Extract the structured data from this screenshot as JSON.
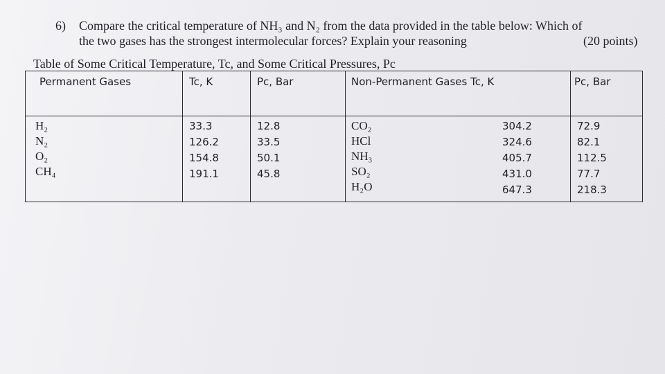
{
  "question": {
    "number": "6)",
    "line1": "Compare the critical temperature of NH₃ and N₂ from the data provided in the table below: Which of",
    "line2": "the two gases has the strongest intermolecular forces? Explain your reasoning",
    "points": "(20 points)"
  },
  "table": {
    "caption": "Table of Some Critical Temperature, Tc, and Some Critical Pressures, Pc",
    "headers": {
      "permanent": "Permanent Gases",
      "tc": "Tc, K",
      "pc": "Pc, Bar",
      "non_permanent": "Non-Permanent Gases  Tc, K",
      "pc2": "Pc, Bar"
    },
    "permanent_gases": [
      "H₂",
      "N₂",
      "O₂",
      "CH₄"
    ],
    "permanent_tc": [
      "33.3",
      "126.2",
      "154.8",
      "191.1"
    ],
    "permanent_pc": [
      "12.8",
      "33.5",
      "50.1",
      "45.8"
    ],
    "non_permanent_gases": [
      "CO₂",
      "HCl",
      "NH₃",
      "SO₂",
      "H₂O"
    ],
    "non_permanent_tc": [
      "304.2",
      "324.6",
      "405.7",
      "431.0",
      "647.3"
    ],
    "non_permanent_pc": [
      "72.9",
      "82.1",
      "112.5",
      "77.7",
      "218.3"
    ]
  }
}
